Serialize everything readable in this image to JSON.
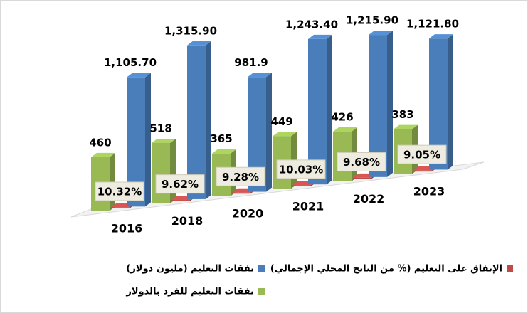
{
  "chart_data": {
    "type": "bar3d",
    "categories": [
      "2016",
      "2018",
      "2020",
      "2021",
      "2022",
      "2023"
    ],
    "ylim": [
      0,
      1400
    ],
    "series": [
      {
        "name": "نفقات التعليم للفرد بالدولار",
        "color": "#98b954",
        "values": [
          460,
          518,
          365,
          449,
          426,
          383
        ]
      },
      {
        "name": "الإنفاق على التعليم (% من الناتج المحلي الإجمالي)",
        "color": "#be4b48",
        "values": [
          10.32,
          9.62,
          9.28,
          10.03,
          9.68,
          9.05
        ],
        "value_labels": [
          "10.32%",
          "9.62%",
          "9.28%",
          "10.03%",
          "9.68%",
          "9.05%"
        ]
      },
      {
        "name": "نفقات التعليم (مليون دولار)",
        "color": "#4a7ebb",
        "values": [
          1105.7,
          1315.9,
          981.9,
          1243.4,
          1215.9,
          1121.8
        ],
        "value_labels": [
          "1,105.70",
          "1,315.90",
          "981.9",
          "1,243.40",
          "1,215.90",
          "1,121.80"
        ]
      }
    ]
  }
}
